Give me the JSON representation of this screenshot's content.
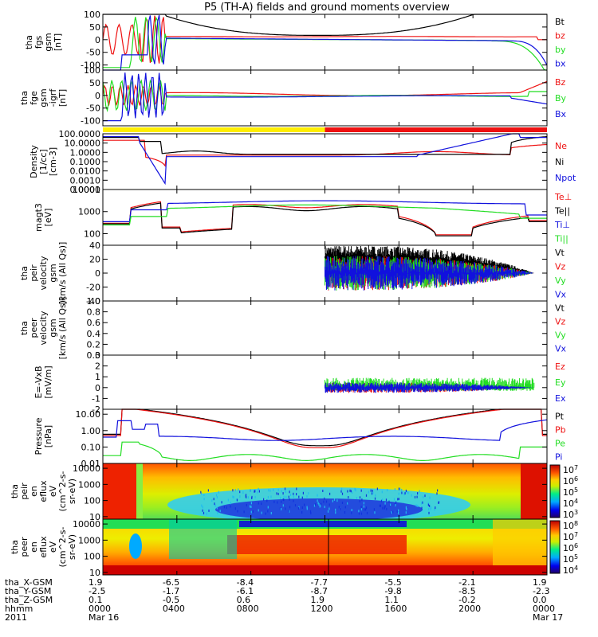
{
  "title": "P5 (TH-A) fields and ground moments overview",
  "colors": {
    "black": "#000000",
    "red": "#ee1111",
    "green": "#22dd22",
    "blue": "#1111dd",
    "yellow": "#ffee00"
  },
  "chart_data": [
    {
      "id": "fgs",
      "type": "line",
      "ylabel": [
        "tha",
        "fgs",
        "gsm",
        "[nT]"
      ],
      "ylim": [
        -120,
        100
      ],
      "yticks": [
        "100",
        "50",
        "0",
        "-50",
        "-100"
      ],
      "series": [
        {
          "name": "Bt",
          "color": "black"
        },
        {
          "name": "bz",
          "color": "red"
        },
        {
          "name": "by",
          "color": "green"
        },
        {
          "name": "bx",
          "color": "blue"
        }
      ]
    },
    {
      "id": "fge",
      "type": "line",
      "ylabel": [
        "tha",
        "fge",
        "gsm",
        "-igrf",
        "[nT]"
      ],
      "ylim": [
        -120,
        100
      ],
      "yticks": [
        "100",
        "50",
        "0",
        "-50",
        "-100"
      ],
      "series": [
        {
          "name": "Bz",
          "color": "red"
        },
        {
          "name": "By",
          "color": "green"
        },
        {
          "name": "Bx",
          "color": "blue"
        }
      ]
    },
    {
      "id": "mode",
      "type": "bar",
      "segments": [
        {
          "from": 0,
          "to": 12,
          "color": "yellow"
        },
        {
          "from": 12,
          "to": 24,
          "color": "red"
        }
      ]
    },
    {
      "id": "density",
      "type": "line",
      "scale": "log",
      "ylabel": [
        "Density",
        "[1/cc]",
        "[cm-3]"
      ],
      "ylim": [
        0.0001,
        100
      ],
      "yticks": [
        "100.0000",
        "10.0000",
        "1.0000",
        "0.1000",
        "0.0100",
        "0.0010",
        "0.0001"
      ],
      "series": [
        {
          "name": "Ne",
          "color": "red"
        },
        {
          "name": "Ni",
          "color": "black"
        },
        {
          "name": "Npot",
          "color": "blue"
        }
      ]
    },
    {
      "id": "temp",
      "type": "line",
      "scale": "log",
      "ylabel": [
        "magt3",
        "[eV]"
      ],
      "ylim": [
        30,
        10000
      ],
      "yticks": [
        "10000",
        "1000",
        "100"
      ],
      "series": [
        {
          "name": "Te⊥",
          "color": "red"
        },
        {
          "name": "Te||",
          "color": "black"
        },
        {
          "name": "Ti⊥",
          "color": "blue"
        },
        {
          "name": "Ti||",
          "color": "green"
        }
      ]
    },
    {
      "id": "peir_vel",
      "type": "line",
      "ylabel": [
        "tha",
        "peir",
        "velocity",
        "gsm",
        "[km/s (All Qs)]"
      ],
      "ylim": [
        -40,
        40
      ],
      "yticks": [
        "40",
        "20",
        "0",
        "-20",
        "-40"
      ],
      "series": [
        {
          "name": "Vt",
          "color": "black"
        },
        {
          "name": "Vz",
          "color": "red"
        },
        {
          "name": "Vy",
          "color": "green"
        },
        {
          "name": "Vx",
          "color": "blue"
        }
      ]
    },
    {
      "id": "peer_vel",
      "type": "line",
      "ylabel": [
        "tha",
        "peer",
        "velocity",
        "gsm",
        "[km/s (All Qs)]"
      ],
      "ylim": [
        0,
        1
      ],
      "yticks": [
        "1.0",
        "0.8",
        "0.6",
        "0.4",
        "0.2",
        "0.0"
      ],
      "series": [
        {
          "name": "Vt",
          "color": "black"
        },
        {
          "name": "Vz",
          "color": "red"
        },
        {
          "name": "Vy",
          "color": "green"
        },
        {
          "name": "Vx",
          "color": "blue"
        }
      ]
    },
    {
      "id": "efield",
      "type": "line",
      "ylabel": [
        "E=-VxB",
        "[mV/m]"
      ],
      "ylim": [
        -2,
        3
      ],
      "yticks": [
        "3",
        "2",
        "1",
        "0",
        "-1",
        "-2"
      ],
      "series": [
        {
          "name": "Ez",
          "color": "red"
        },
        {
          "name": "Ey",
          "color": "green"
        },
        {
          "name": "Ex",
          "color": "blue"
        }
      ]
    },
    {
      "id": "pressure",
      "type": "line",
      "scale": "log",
      "ylabel": [
        "Pressure",
        "[nPa]"
      ],
      "ylim": [
        0.01,
        20
      ],
      "yticks": [
        "10.00",
        "1.00",
        "0.10",
        "0.01"
      ],
      "series": [
        {
          "name": "Pt",
          "color": "black"
        },
        {
          "name": "Pb",
          "color": "red"
        },
        {
          "name": "Pe",
          "color": "green"
        },
        {
          "name": "Pi",
          "color": "blue"
        }
      ]
    },
    {
      "id": "peir_spec",
      "type": "heatmap",
      "scale": "log",
      "ylabel": [
        "tha",
        "peir",
        "en",
        "eflux",
        "eV",
        "(cm^2-s-",
        "sr-eV)"
      ],
      "ylim": [
        7,
        20000
      ],
      "yticks": [
        "10000",
        "1000",
        "100",
        "10"
      ],
      "colorbar": {
        "ticks": [
          "10^7",
          "10^6",
          "10^5",
          "10^4",
          "10^3"
        ]
      }
    },
    {
      "id": "peer_spec",
      "type": "heatmap",
      "scale": "log",
      "ylabel": [
        "tha",
        "peer",
        "en",
        "eflux",
        "eV",
        "(cm^2-s-",
        "sr-eV)"
      ],
      "ylim": [
        7,
        20000
      ],
      "yticks": [
        "10000",
        "1000",
        "100",
        "10"
      ],
      "colorbar": {
        "ticks": [
          "10^8",
          "10^7",
          "10^6",
          "10^5",
          "10^4"
        ]
      }
    }
  ],
  "x_axis": {
    "range_hours": [
      0,
      24
    ],
    "tick_hours": [
      4,
      8,
      12,
      16,
      20
    ],
    "row_labels": [
      "tha_X-GSM",
      "tha_Y-GSM",
      "tha_Z-GSM",
      "hhmm",
      "2011"
    ],
    "columns": [
      {
        "hour": 0,
        "x": "1.9",
        "y": "-2.5",
        "z": "0.1",
        "hhmm": "0000",
        "date": "Mar 16"
      },
      {
        "hour": 4,
        "x": "-6.5",
        "y": "-1.7",
        "z": "-0.5",
        "hhmm": "0400",
        "date": ""
      },
      {
        "hour": 8,
        "x": "-8.4",
        "y": "-6.1",
        "z": "0.6",
        "hhmm": "0800",
        "date": ""
      },
      {
        "hour": 12,
        "x": "-7.7",
        "y": "-8.7",
        "z": "1.9",
        "hhmm": "1200",
        "date": ""
      },
      {
        "hour": 16,
        "x": "-5.5",
        "y": "-9.8",
        "z": "1.1",
        "hhmm": "1600",
        "date": ""
      },
      {
        "hour": 20,
        "x": "-2.1",
        "y": "-8.5",
        "z": "-0.2",
        "hhmm": "2000",
        "date": ""
      },
      {
        "hour": 24,
        "x": "1.9",
        "y": "-2.3",
        "z": "0.0",
        "hhmm": "0000",
        "date": "Mar 17"
      }
    ]
  }
}
